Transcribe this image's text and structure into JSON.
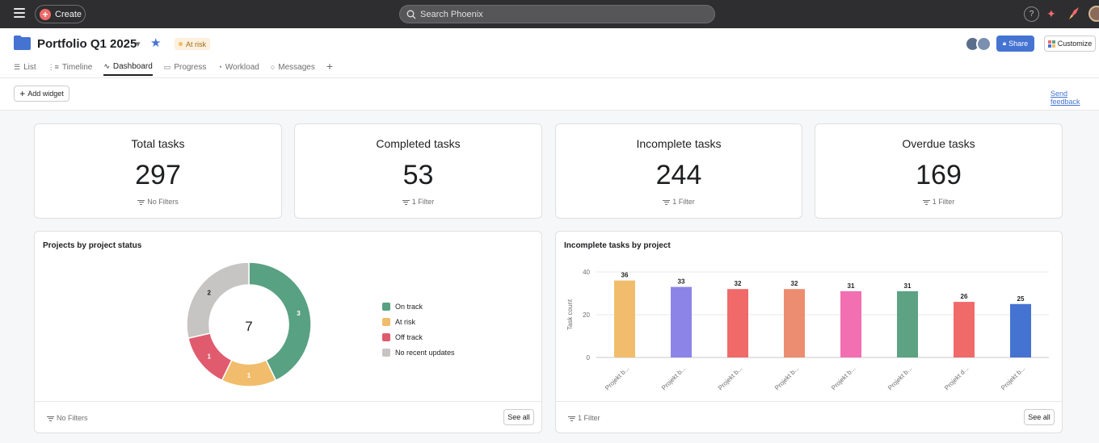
{
  "topbar": {
    "create_label": "Create",
    "search_placeholder": "Search Phoenix",
    "help_label": "?"
  },
  "header": {
    "title": "Portfolio Q1 2025",
    "status": "At risk",
    "share_label": "Share",
    "customize_label": "Customize",
    "tabs": [
      {
        "label": "List",
        "icon": "list-icon"
      },
      {
        "label": "Timeline",
        "icon": "timeline-icon"
      },
      {
        "label": "Dashboard",
        "icon": "dashboard-icon",
        "active": true
      },
      {
        "label": "Progress",
        "icon": "progress-icon"
      },
      {
        "label": "Workload",
        "icon": "workload-icon"
      },
      {
        "label": "Messages",
        "icon": "messages-icon"
      }
    ]
  },
  "toolbar": {
    "add_widget_label": "Add widget",
    "feedback_label": "Send feedback"
  },
  "stats": [
    {
      "title": "Total tasks",
      "value": "297",
      "filter": "No Filters"
    },
    {
      "title": "Completed tasks",
      "value": "53",
      "filter": "1 Filter"
    },
    {
      "title": "Incomplete tasks",
      "value": "244",
      "filter": "1 Filter"
    },
    {
      "title": "Overdue tasks",
      "value": "169",
      "filter": "1 Filter"
    }
  ],
  "donut_panel": {
    "title": "Projects by project status",
    "filter": "No Filters",
    "see_all": "See all"
  },
  "bar_panel": {
    "title": "Incomplete tasks by project",
    "filter": "1 Filter",
    "see_all": "See all"
  },
  "colors": {
    "brand": "#f06a6a",
    "accent": "#4573d2",
    "on_track": "#58a182",
    "at_risk": "#f1bd6c",
    "off_track": "#e05b6e",
    "no_updates": "#c7c4c4"
  },
  "chart_data": [
    {
      "type": "pie",
      "title": "Projects by project status",
      "center_label": "7",
      "categories": [
        "On track",
        "At risk",
        "Off track",
        "No recent updates"
      ],
      "values": [
        3,
        1,
        1,
        2
      ],
      "colors": [
        "#58a182",
        "#f1bd6c",
        "#e05b6e",
        "#c7c4c4"
      ],
      "legend": "right"
    },
    {
      "type": "bar",
      "title": "Incomplete tasks by project",
      "ylabel": "Task count",
      "ylim": [
        0,
        40
      ],
      "yticks": [
        0,
        20,
        40
      ],
      "categories": [
        "Projekt b...",
        "Projekt b...",
        "Projekt b...",
        "Projekt b...",
        "Projekt b...",
        "Projekt b...",
        "Projekt d...",
        "Projekt b..."
      ],
      "values": [
        36,
        33,
        32,
        32,
        31,
        31,
        26,
        25
      ],
      "colors": [
        "#f1bd6c",
        "#8d84e8",
        "#f06a6a",
        "#ec8d71",
        "#f26fb2",
        "#5da283",
        "#f06a6a",
        "#4573d2"
      ],
      "grid": true
    }
  ]
}
